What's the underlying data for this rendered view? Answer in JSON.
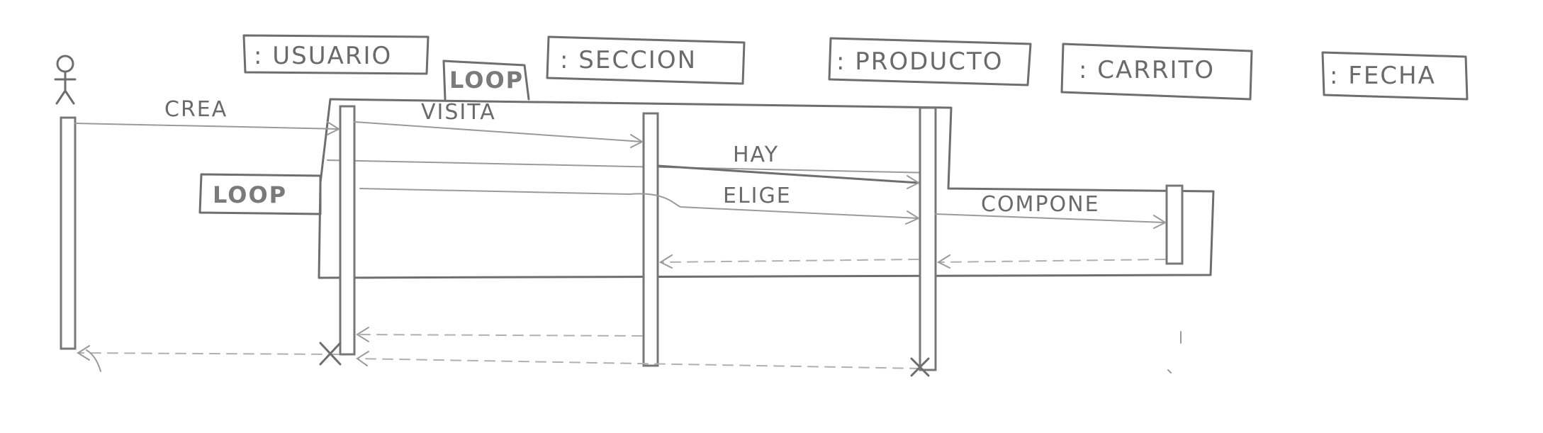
{
  "lifelines": {
    "usuario": ": USUARIO",
    "seccion": ": SECCION",
    "producto": ": PRODUCTO",
    "carrito": ": CARRITO",
    "fecha": ": FECHA"
  },
  "fragments": {
    "outer": "LOOP",
    "inner": "LOOP"
  },
  "messages": {
    "crea": "CREA",
    "visita": "VISITA",
    "hay": "HAY",
    "elige": "ELIGE",
    "compone": "COMPONE"
  }
}
